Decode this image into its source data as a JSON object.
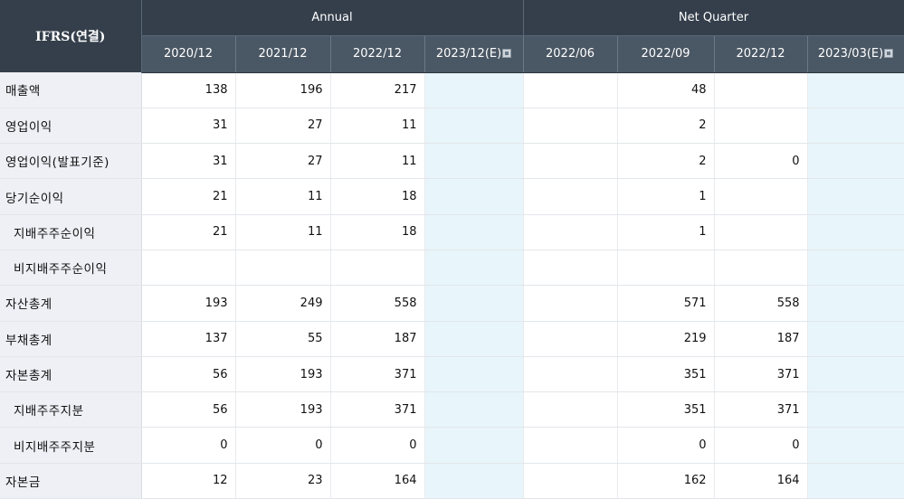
{
  "header": {
    "corner": "IFRS(연결)",
    "groups": [
      "Annual",
      "Net Quarter"
    ],
    "annual_periods": [
      "2020/12",
      "2021/12",
      "2022/12",
      "2023/12(E)"
    ],
    "quarter_periods": [
      "2022/06",
      "2022/09",
      "2022/12",
      "2023/03(E)"
    ],
    "estimate_icon": "info-square-icon"
  },
  "rows": [
    {
      "label": "매출액",
      "sub": false,
      "annual": [
        "138",
        "196",
        "217",
        ""
      ],
      "quarter": [
        "",
        "48",
        "",
        ""
      ]
    },
    {
      "label": "영업이익",
      "sub": false,
      "annual": [
        "31",
        "27",
        "11",
        ""
      ],
      "quarter": [
        "",
        "2",
        "",
        ""
      ]
    },
    {
      "label": "영업이익(발표기준)",
      "sub": false,
      "annual": [
        "31",
        "27",
        "11",
        ""
      ],
      "quarter": [
        "",
        "2",
        "0",
        ""
      ]
    },
    {
      "label": "당기순이익",
      "sub": false,
      "annual": [
        "21",
        "11",
        "18",
        ""
      ],
      "quarter": [
        "",
        "1",
        "",
        ""
      ]
    },
    {
      "label": "지배주주순이익",
      "sub": true,
      "annual": [
        "21",
        "11",
        "18",
        ""
      ],
      "quarter": [
        "",
        "1",
        "",
        ""
      ]
    },
    {
      "label": "비지배주주순이익",
      "sub": true,
      "annual": [
        "",
        "",
        "",
        ""
      ],
      "quarter": [
        "",
        "",
        "",
        ""
      ]
    },
    {
      "label": "자산총계",
      "sub": false,
      "annual": [
        "193",
        "249",
        "558",
        ""
      ],
      "quarter": [
        "",
        "571",
        "558",
        ""
      ]
    },
    {
      "label": "부채총계",
      "sub": false,
      "annual": [
        "137",
        "55",
        "187",
        ""
      ],
      "quarter": [
        "",
        "219",
        "187",
        ""
      ]
    },
    {
      "label": "자본총계",
      "sub": false,
      "annual": [
        "56",
        "193",
        "371",
        ""
      ],
      "quarter": [
        "",
        "351",
        "371",
        ""
      ]
    },
    {
      "label": "지배주주지분",
      "sub": true,
      "annual": [
        "56",
        "193",
        "371",
        ""
      ],
      "quarter": [
        "",
        "351",
        "371",
        ""
      ]
    },
    {
      "label": "비지배주주지분",
      "sub": true,
      "annual": [
        "0",
        "0",
        "0",
        ""
      ],
      "quarter": [
        "",
        "0",
        "0",
        ""
      ]
    },
    {
      "label": "자본금",
      "sub": false,
      "annual": [
        "12",
        "23",
        "164",
        ""
      ],
      "quarter": [
        "",
        "162",
        "164",
        ""
      ]
    }
  ]
}
